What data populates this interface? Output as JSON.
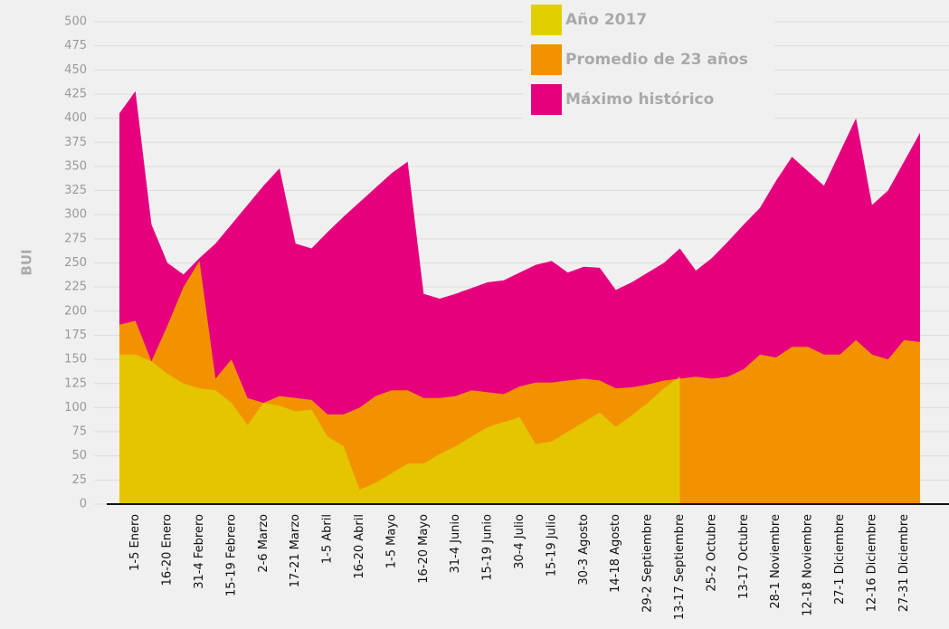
{
  "chart_data": {
    "type": "area",
    "y_label": "BUI",
    "categories": [
      null,
      "1-5 Enero",
      null,
      "16-20 Enero",
      null,
      "31-4 Febrero",
      null,
      "15-19 Febrero",
      null,
      "2-6 Marzo",
      null,
      "17-21 Marzo",
      null,
      "1-5 Abril",
      null,
      "16-20  Abril",
      null,
      "1-5 Mayo",
      null,
      "16-20 Mayo",
      null,
      "31-4 Junio",
      null,
      "15-19 Junio",
      null,
      "30-4 Julio",
      null,
      "15-19 Julio",
      null,
      "30-3 Agosto",
      null,
      "14-18 Agosto",
      null,
      "29-2 Septiembre",
      null,
      "13-17 Septiembre",
      null,
      "25-2 Octubre",
      null,
      "13-17 Octubre",
      null,
      "28-1 Noviembre",
      null,
      "12-18 Noviembre",
      null,
      "27-1 Diciembre",
      null,
      "12-16 Diciembre",
      null,
      "27-31 Diciembre",
      null
    ],
    "series": [
      {
        "name": "Máximo histórico",
        "color": "#e6007e",
        "opacity": 1,
        "values": [
          405,
          428,
          290,
          250,
          238,
          255,
          270,
          290,
          310,
          330,
          348,
          270,
          265,
          282,
          298,
          313,
          328,
          343,
          355,
          218,
          213,
          218,
          224,
          230,
          232,
          240,
          248,
          252,
          240,
          246,
          245,
          222,
          230,
          240,
          250,
          265,
          242,
          255,
          272,
          290,
          307,
          335,
          360,
          345,
          330,
          365,
          400,
          310,
          325,
          355,
          385
        ]
      },
      {
        "name": "Promedio de 23 años",
        "color": "#f39200",
        "opacity": 1,
        "values": [
          186,
          190,
          148,
          185,
          225,
          252,
          130,
          150,
          110,
          105,
          112,
          110,
          108,
          93,
          93,
          100,
          112,
          118,
          118,
          110,
          110,
          112,
          118,
          116,
          114,
          122,
          126,
          126,
          128,
          130,
          128,
          120,
          121,
          124,
          128,
          130,
          132,
          130,
          132,
          140,
          155,
          152,
          163,
          163,
          155,
          155,
          170,
          155,
          150,
          170,
          168
        ]
      },
      {
        "name": "Año 2017",
        "color": "#e2cf00",
        "opacity": 0.82,
        "values": [
          155,
          155,
          148,
          135,
          125,
          120,
          118,
          105,
          82,
          105,
          102,
          96,
          98,
          70,
          60,
          15,
          22,
          32,
          42,
          42,
          52,
          60,
          70,
          80,
          85,
          90,
          62,
          65,
          75,
          85,
          95,
          80,
          92,
          105,
          120,
          132,
          null,
          null,
          null,
          null,
          null,
          null,
          null,
          null,
          null,
          null,
          null,
          null,
          null,
          null,
          null
        ]
      }
    ],
    "legend_order": [
      2,
      1,
      0
    ],
    "ylim": [
      0,
      500
    ],
    "yticks": [
      0,
      25,
      50,
      75,
      100,
      125,
      150,
      175,
      200,
      225,
      250,
      275,
      300,
      325,
      350,
      375,
      400,
      425,
      450,
      475,
      500
    ],
    "grid": true
  }
}
